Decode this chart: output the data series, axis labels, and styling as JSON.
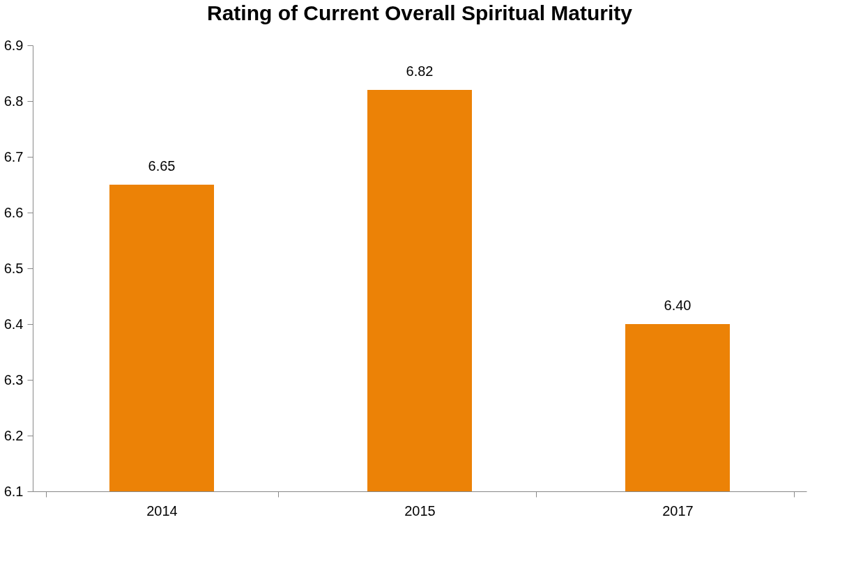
{
  "chart_data": {
    "type": "bar",
    "title": "Rating of Current Overall Spiritual Maturity",
    "categories": [
      "2014",
      "2015",
      "2017"
    ],
    "values": [
      6.65,
      6.82,
      6.4
    ],
    "value_labels": [
      "6.65",
      "6.82",
      "6.40"
    ],
    "color": "#ec8206",
    "ylim": [
      6.1,
      6.9
    ],
    "yticks": [
      6.1,
      6.2,
      6.3,
      6.4,
      6.5,
      6.6,
      6.7,
      6.8,
      6.9
    ],
    "grid": false
  }
}
